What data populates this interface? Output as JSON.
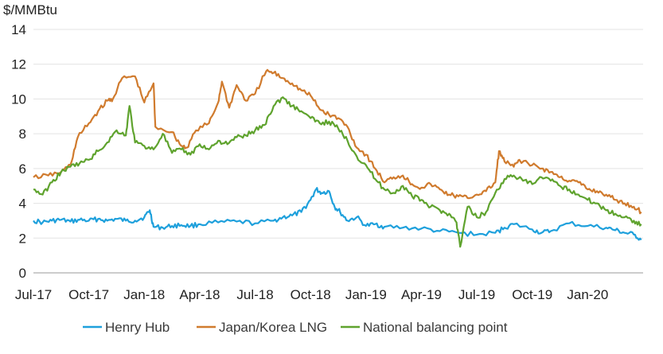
{
  "chart_data": {
    "type": "line",
    "title": "",
    "xlabel": "",
    "ylabel": "$/MMBtu",
    "ylim": [
      0,
      14
    ],
    "yticks": [
      "0",
      "2",
      "4",
      "6",
      "8",
      "10",
      "12",
      "14"
    ],
    "x_start": "2017-07",
    "x_end": "2020-03",
    "xtick_labels": [
      "Jul-17",
      "Oct-17",
      "Jan-18",
      "Apr-18",
      "Jul-18",
      "Oct-18",
      "Jan-19",
      "Apr-19",
      "Jul-19",
      "Oct-19",
      "Jan-20"
    ],
    "grid": "horizontal",
    "legend_position": "bottom",
    "series": [
      {
        "name": "Henry Hub",
        "color": "#1ea0dc",
        "x": [
          0,
          0.5,
          1,
          1.5,
          2,
          2.5,
          3,
          3.5,
          4,
          4.5,
          5,
          5.5,
          6,
          6.3,
          6.5,
          7,
          7.5,
          8,
          8.5,
          9,
          10,
          11,
          12,
          13,
          13.5,
          14,
          14.5,
          15,
          15.3,
          15.6,
          16,
          16.3,
          16.6,
          17,
          17.5,
          18,
          18.5,
          19,
          20,
          21,
          22,
          23,
          24,
          25,
          25.5,
          26,
          27,
          27.5,
          28,
          29,
          30,
          31,
          31.5,
          32,
          32.5,
          32.9
        ],
        "values": [
          3.0,
          2.9,
          3.0,
          3.05,
          2.95,
          3.05,
          3.0,
          3.1,
          3.0,
          3.1,
          3.0,
          3.0,
          3.2,
          3.6,
          2.65,
          2.6,
          2.7,
          2.75,
          2.7,
          2.8,
          2.9,
          2.95,
          2.85,
          3.0,
          3.2,
          3.3,
          3.5,
          4.2,
          4.8,
          4.6,
          4.7,
          3.8,
          3.5,
          3.0,
          3.2,
          2.7,
          2.8,
          2.65,
          2.6,
          2.55,
          2.4,
          2.3,
          2.2,
          2.3,
          2.6,
          2.8,
          2.5,
          2.3,
          2.4,
          2.85,
          2.7,
          2.6,
          2.45,
          2.3,
          2.2,
          1.9
        ]
      },
      {
        "name": "Japan/Korea LNG",
        "color": "#d07b2e",
        "x": [
          0,
          0.8,
          1.5,
          2,
          2.4,
          3,
          3.5,
          4,
          4.3,
          4.8,
          5.5,
          6,
          6.5,
          6.6,
          7.5,
          8,
          8.3,
          8.8,
          9.5,
          10,
          10.2,
          10.6,
          11,
          11.5,
          12,
          12.6,
          13,
          13.5,
          14,
          14.5,
          15,
          15.5,
          16,
          16.5,
          17,
          17.5,
          18,
          18.5,
          19,
          19.5,
          20,
          20.5,
          21,
          21.5,
          22,
          22.5,
          23,
          23.5,
          24,
          24.5,
          25,
          25.2,
          25.5,
          26,
          26.3,
          27,
          27.5,
          28,
          28.5,
          29,
          29.5,
          30,
          30.5,
          31,
          31.5,
          32,
          32.5,
          32.9
        ],
        "values": [
          5.5,
          5.6,
          5.8,
          6.2,
          7.8,
          8.6,
          9.3,
          9.9,
          10.0,
          11.2,
          11.3,
          9.8,
          10.9,
          8.4,
          8.1,
          7.3,
          7.2,
          8.2,
          8.6,
          9.8,
          11.0,
          9.5,
          10.8,
          9.9,
          10.3,
          11.6,
          11.5,
          11.2,
          10.9,
          10.5,
          10.2,
          9.4,
          9.1,
          8.9,
          8.4,
          7.2,
          6.8,
          6.0,
          5.2,
          5.5,
          5.6,
          5.1,
          4.9,
          5.1,
          4.8,
          4.5,
          4.4,
          4.3,
          4.5,
          4.7,
          5.2,
          7.0,
          6.4,
          6.1,
          6.5,
          6.2,
          6.0,
          5.8,
          5.5,
          5.3,
          5.2,
          4.8,
          4.7,
          4.5,
          4.2,
          4.0,
          3.8,
          3.5
        ]
      },
      {
        "name": "National balancing point",
        "color": "#5fa32e",
        "x": [
          0,
          0.5,
          1,
          1.5,
          2,
          2.5,
          3,
          3.5,
          4,
          4.5,
          5,
          5.2,
          5.5,
          6,
          6.5,
          7,
          7.5,
          8,
          8.5,
          9,
          9.5,
          10,
          10.5,
          11,
          11.5,
          12,
          12.5,
          13,
          13.5,
          14,
          14.5,
          15,
          15.5,
          16,
          16.5,
          17,
          17.5,
          18,
          18.5,
          19,
          19.5,
          20,
          20.5,
          21,
          21.5,
          22,
          22.5,
          22.9,
          23.1,
          23.5,
          24,
          24.5,
          25,
          25.5,
          26,
          26.5,
          27,
          27.5,
          28,
          28.5,
          29,
          29.5,
          30,
          30.5,
          31,
          31.5,
          32,
          32.5,
          32.9
        ],
        "values": [
          4.8,
          4.5,
          5.2,
          5.8,
          6.1,
          6.3,
          6.5,
          7.0,
          7.5,
          8.2,
          7.9,
          9.6,
          7.5,
          7.3,
          7.1,
          8.0,
          6.9,
          7.1,
          6.8,
          7.4,
          7.1,
          7.6,
          7.4,
          7.8,
          7.9,
          8.2,
          8.5,
          9.6,
          10.1,
          9.6,
          9.3,
          8.9,
          8.6,
          8.7,
          8.3,
          7.6,
          6.7,
          6.2,
          5.4,
          4.8,
          4.6,
          5.0,
          4.4,
          4.2,
          3.8,
          3.6,
          3.4,
          2.9,
          1.5,
          3.8,
          3.2,
          3.5,
          4.6,
          5.4,
          5.6,
          5.3,
          5.1,
          5.5,
          5.3,
          5.0,
          4.8,
          4.5,
          4.2,
          4.0,
          3.6,
          3.4,
          3.2,
          3.0,
          2.8
        ]
      }
    ]
  }
}
